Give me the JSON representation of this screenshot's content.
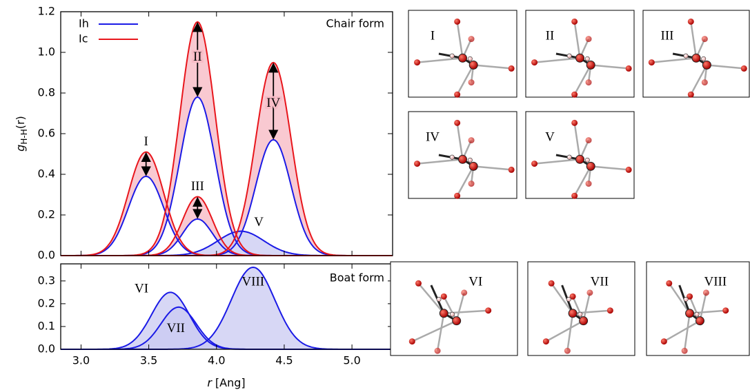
{
  "chart_data": [
    {
      "type": "line",
      "label": "Chair form",
      "ylabel": {
        "symbol": "g",
        "subscript": "H-H",
        "argument": "(r)"
      },
      "xlim": [
        2.85,
        5.3
      ],
      "ylim": [
        0,
        1.2
      ],
      "yticks": [
        {
          "value": 0,
          "label": "0.0"
        },
        {
          "value": 0.2,
          "label": "0.2"
        },
        {
          "value": 0.4,
          "label": "0.4"
        },
        {
          "value": 0.6,
          "label": "0.6"
        },
        {
          "value": 0.8,
          "label": "0.8"
        },
        {
          "value": 1.0,
          "label": "1.0"
        },
        {
          "value": 1.2,
          "label": "1.2"
        }
      ],
      "legend": "upper left",
      "peak_labels": [
        "I",
        "II",
        "III",
        "IV",
        "V"
      ],
      "series": [
        {
          "name": "Ih",
          "color": "#1a1ae6",
          "fill": "#c9c9f2",
          "peaks": [
            {
              "center": 3.48,
              "height": 0.39,
              "sigma": 0.13
            },
            {
              "center": 3.86,
              "height": 0.78,
              "sigma": 0.13
            },
            {
              "center": 3.86,
              "height": 0.18,
              "sigma": 0.11
            },
            {
              "center": 4.42,
              "height": 0.57,
              "sigma": 0.13
            },
            {
              "center": 4.18,
              "height": 0.12,
              "sigma": 0.17
            }
          ]
        },
        {
          "name": "Ic",
          "color": "#e8151b",
          "fill": "#f7bcc6",
          "peaks": [
            {
              "center": 3.48,
              "height": 0.51,
              "sigma": 0.13
            },
            {
              "center": 3.86,
              "height": 1.15,
              "sigma": 0.13
            },
            {
              "center": 3.86,
              "height": 0.29,
              "sigma": 0.11
            },
            {
              "center": 4.42,
              "height": 0.95,
              "sigma": 0.13
            }
          ]
        }
      ]
    },
    {
      "type": "line",
      "label": "Boat form",
      "xlabel": {
        "variable": "r",
        "unit": "[Ang]"
      },
      "xlim": [
        2.85,
        5.3
      ],
      "ylim": [
        0,
        0.375
      ],
      "xticks": [
        {
          "value": 3.0,
          "label": "3.0"
        },
        {
          "value": 3.5,
          "label": "3.5"
        },
        {
          "value": 4.0,
          "label": "4.0"
        },
        {
          "value": 4.5,
          "label": "4.5"
        },
        {
          "value": 5.0,
          "label": "5.0"
        }
      ],
      "yticks": [
        {
          "value": 0,
          "label": "0.0"
        },
        {
          "value": 0.1,
          "label": "0.1"
        },
        {
          "value": 0.2,
          "label": "0.2"
        },
        {
          "value": 0.3,
          "label": "0.3"
        }
      ],
      "peak_labels": [
        "VI",
        "VII",
        "VIII"
      ],
      "series": [
        {
          "name": "Ih",
          "color": "#1a1ae6",
          "fill": "#c9c9f2",
          "peaks": [
            {
              "center": 3.66,
              "height": 0.25,
              "sigma": 0.14
            },
            {
              "center": 3.72,
              "height": 0.185,
              "sigma": 0.13
            },
            {
              "center": 4.27,
              "height": 0.36,
              "sigma": 0.16
            }
          ]
        }
      ]
    }
  ],
  "structure_panels": [
    "I",
    "II",
    "III",
    "IV",
    "V",
    "VI",
    "VII",
    "VIII"
  ]
}
